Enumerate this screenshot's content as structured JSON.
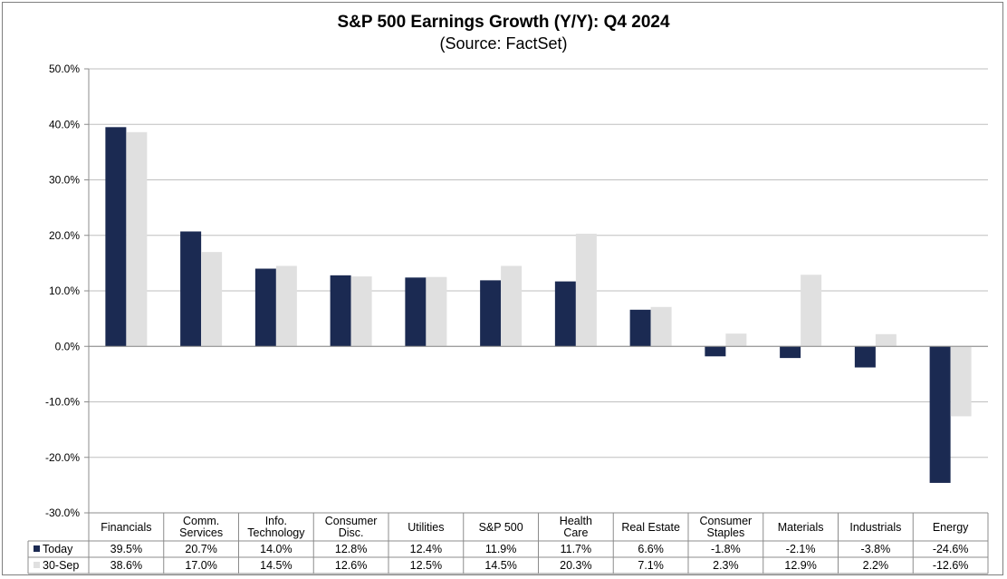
{
  "chart_data": {
    "type": "bar",
    "title": "S&P 500 Earnings Growth (Y/Y): Q4 2024",
    "subtitle": "(Source: FactSet)",
    "xlabel": "",
    "ylabel": "",
    "ylim": [
      -30,
      50
    ],
    "yticks": [
      50,
      40,
      30,
      20,
      10,
      0,
      -10,
      -20,
      -30
    ],
    "ytick_labels": [
      "50.0%",
      "40.0%",
      "30.0%",
      "20.0%",
      "10.0%",
      "0.0%",
      "-10.0%",
      "-20.0%",
      "-30.0%"
    ],
    "grid": true,
    "categories": [
      [
        "Financials"
      ],
      [
        "Comm.",
        "Services"
      ],
      [
        "Info.",
        "Technology"
      ],
      [
        "Consumer",
        "Disc."
      ],
      [
        "Utilities"
      ],
      [
        "S&P 500"
      ],
      [
        "Health",
        "Care"
      ],
      [
        "Real Estate"
      ],
      [
        "Consumer",
        "Staples"
      ],
      [
        "Materials"
      ],
      [
        "Industrials"
      ],
      [
        "Energy"
      ]
    ],
    "series": [
      {
        "name": "Today",
        "color": "#1b2a52",
        "values": [
          39.5,
          20.7,
          14.0,
          12.8,
          12.4,
          11.9,
          11.7,
          6.6,
          -1.8,
          -2.1,
          -3.8,
          -24.6
        ],
        "labels": [
          "39.5%",
          "20.7%",
          "14.0%",
          "12.8%",
          "12.4%",
          "11.9%",
          "11.7%",
          "6.6%",
          "-1.8%",
          "-2.1%",
          "-3.8%",
          "-24.6%"
        ]
      },
      {
        "name": "30-Sep",
        "color": "#e0e0e0",
        "values": [
          38.6,
          17.0,
          14.5,
          12.6,
          12.5,
          14.5,
          20.3,
          7.1,
          2.3,
          12.9,
          2.2,
          -12.6
        ],
        "labels": [
          "38.6%",
          "17.0%",
          "14.5%",
          "12.6%",
          "12.5%",
          "14.5%",
          "20.3%",
          "7.1%",
          "2.3%",
          "12.9%",
          "2.2%",
          "-12.6%"
        ]
      }
    ]
  }
}
